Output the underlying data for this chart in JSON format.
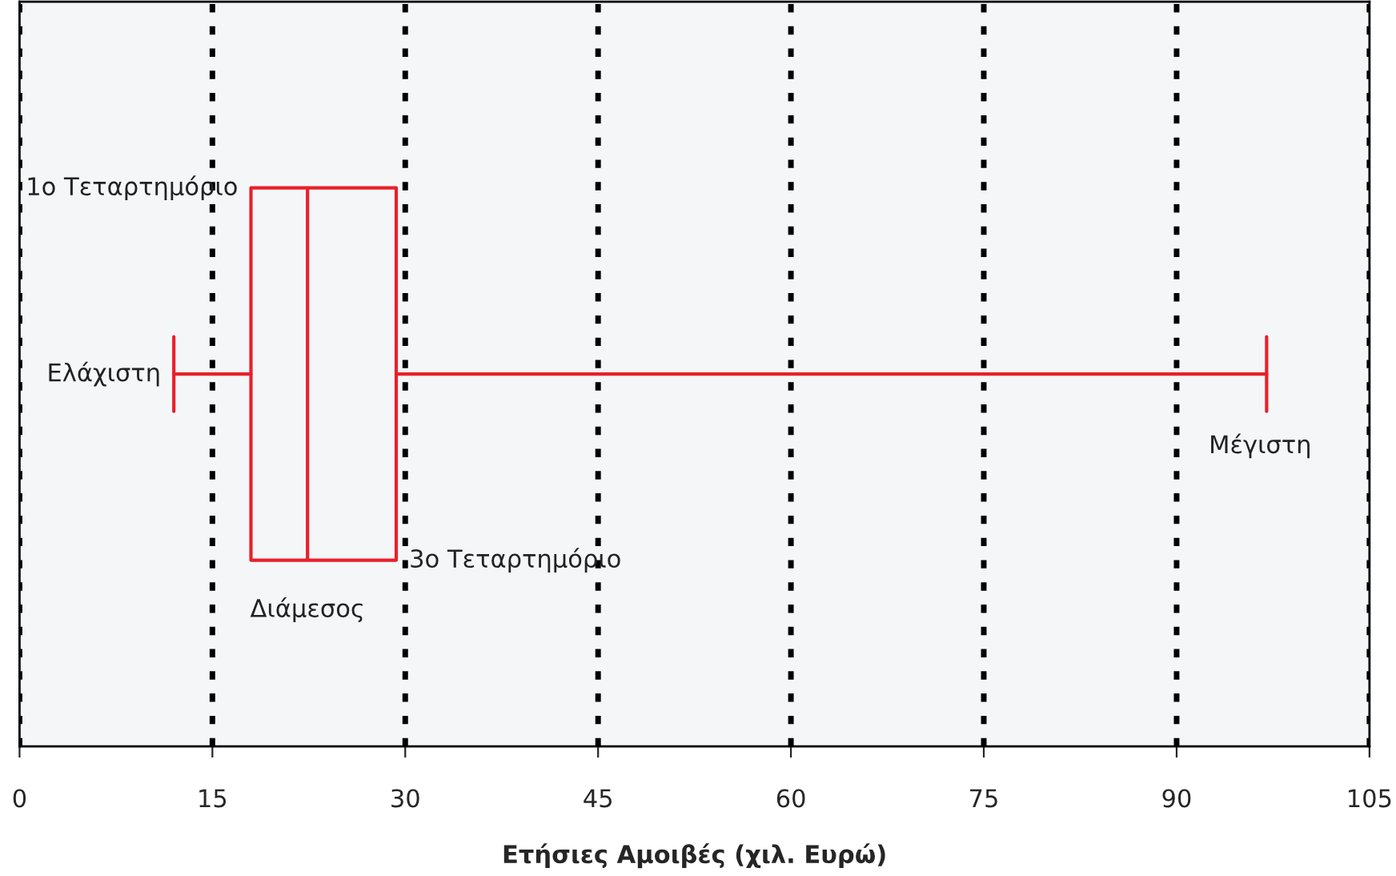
{
  "chart_data": {
    "type": "box",
    "xlabel": "Ετήσιες Αμοιβές (χιλ. Ευρώ)",
    "orientation": "horizontal",
    "categories": [
      null
    ],
    "color": "#e8202a",
    "boxes": [
      {
        "low": 12,
        "q1": 18,
        "median": 22.4,
        "q3": 29.3,
        "high": 97
      }
    ],
    "xlim": [
      0,
      105
    ],
    "xticks": [
      0,
      15,
      30,
      45,
      60,
      75,
      90,
      105
    ],
    "grid": "x",
    "annotations": [
      "1ο Τεταρτημόριο",
      "Ελάχιστη",
      "Μέγιστη",
      "3ο Τεταρτημόριο",
      "Διάμεσος"
    ]
  }
}
